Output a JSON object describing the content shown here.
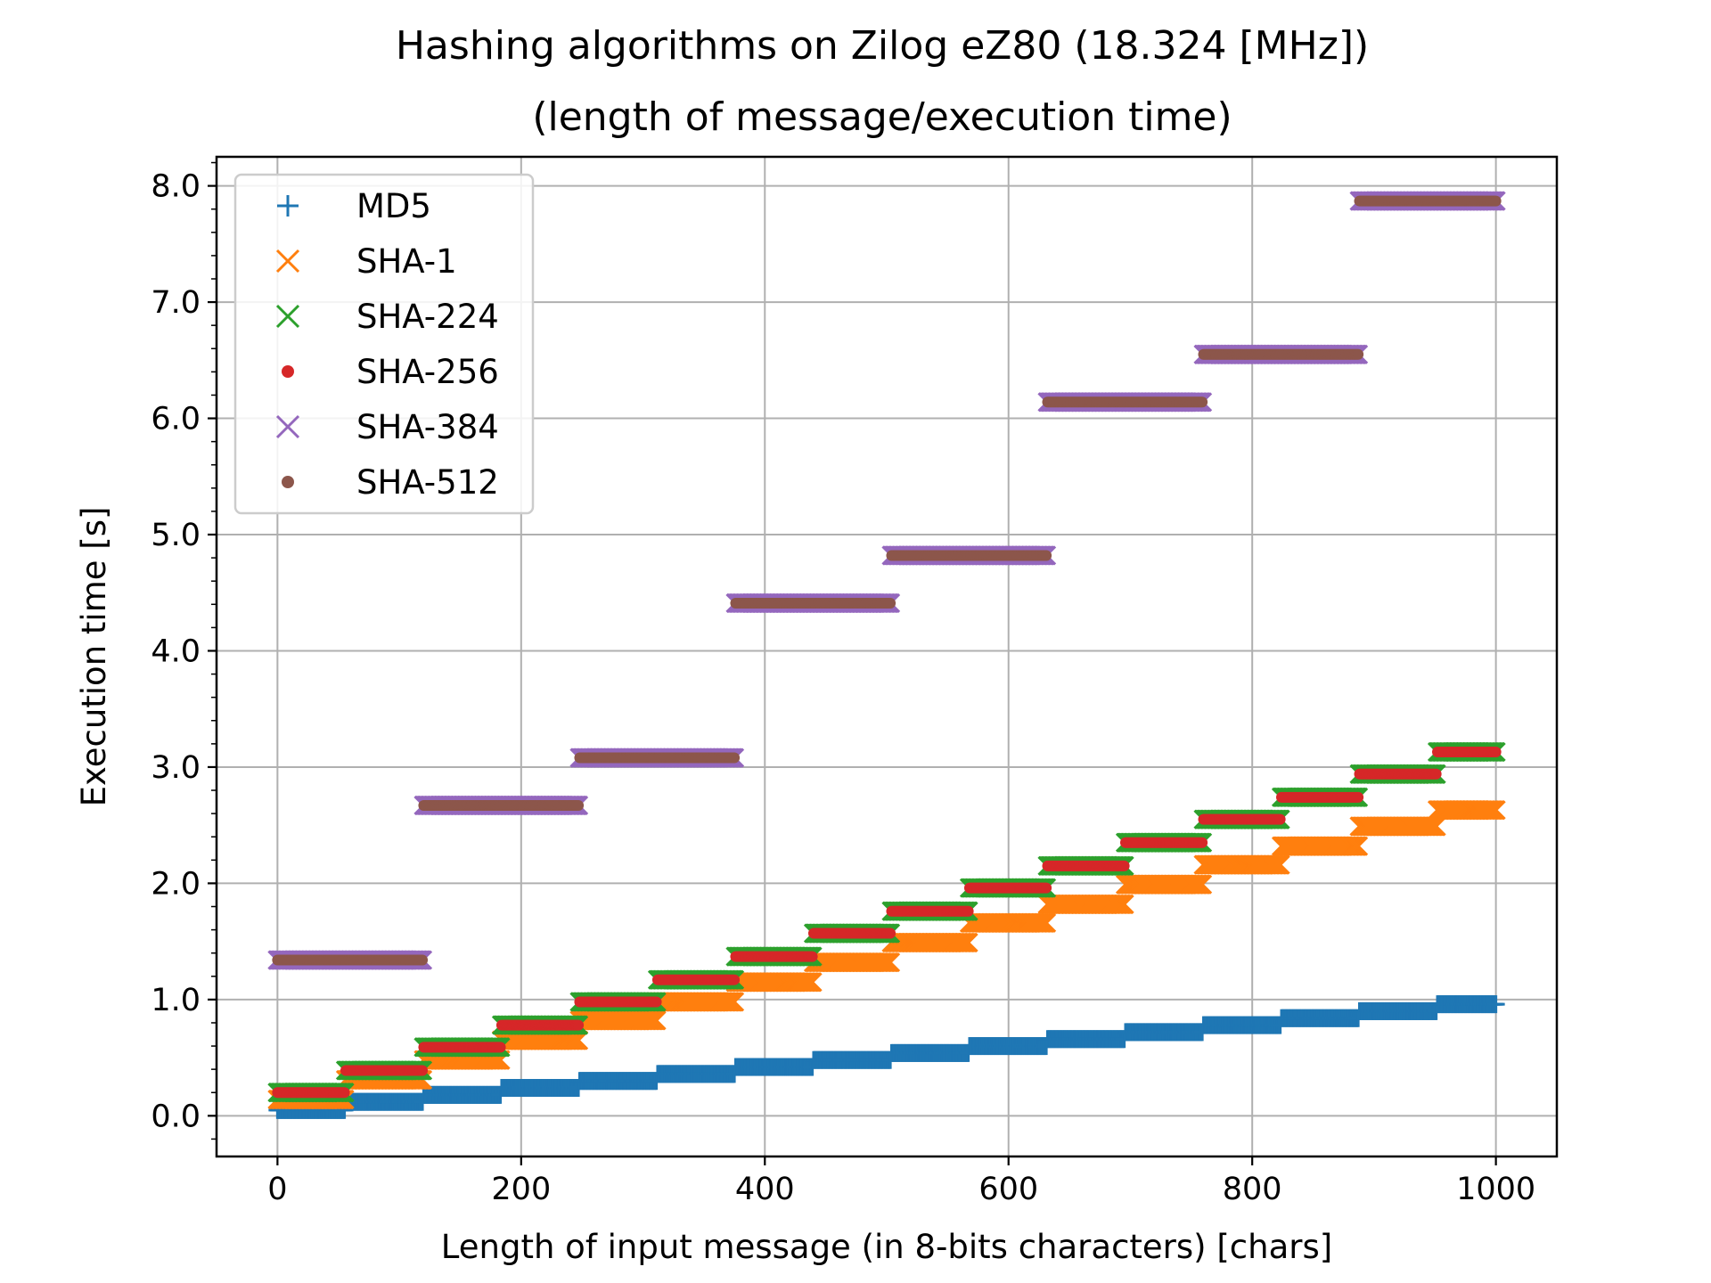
{
  "chart_data": {
    "type": "scatter",
    "title": "Hashing algorithms on Zilog eZ80 (18.324 [MHz])",
    "subtitle": "(length of message/execution time)",
    "xlabel": "Length of input message (in 8-bits characters) [chars]",
    "ylabel": "Execution time [s]",
    "xlim": [
      -50,
      1050
    ],
    "ylim": [
      -0.35,
      8.25
    ],
    "x_ticks": [
      0,
      200,
      400,
      600,
      800,
      1000
    ],
    "y_ticks": [
      0.0,
      1.0,
      2.0,
      3.0,
      4.0,
      5.0,
      6.0,
      7.0,
      8.0
    ],
    "x_tick_labels": [
      "0",
      "200",
      "400",
      "600",
      "800",
      "1000"
    ],
    "y_tick_labels": [
      "0.0",
      "1.0",
      "2.0",
      "3.0",
      "4.0",
      "5.0",
      "6.0",
      "7.0",
      "8.0"
    ],
    "grid": true,
    "legend_position": "upper-left",
    "x_range": [
      0,
      1000
    ],
    "series": [
      {
        "name": "MD5",
        "marker": "plus",
        "color": "#1f77b4",
        "block_chars": 64,
        "steps": [
          0.05,
          0.12,
          0.18,
          0.24,
          0.3,
          0.36,
          0.42,
          0.48,
          0.54,
          0.6,
          0.66,
          0.72,
          0.78,
          0.84,
          0.9,
          0.96
        ]
      },
      {
        "name": "SHA-1",
        "marker": "x",
        "color": "#ff7f0e",
        "block_chars": 64,
        "steps": [
          0.14,
          0.31,
          0.48,
          0.65,
          0.82,
          0.98,
          1.15,
          1.32,
          1.49,
          1.66,
          1.82,
          1.99,
          2.16,
          2.32,
          2.49,
          2.63
        ]
      },
      {
        "name": "SHA-224",
        "marker": "x",
        "color": "#2ca02c",
        "block_chars": 64,
        "steps": [
          0.2,
          0.39,
          0.59,
          0.78,
          0.98,
          1.17,
          1.37,
          1.57,
          1.76,
          1.96,
          2.15,
          2.35,
          2.55,
          2.74,
          2.94,
          3.13
        ]
      },
      {
        "name": "SHA-256",
        "marker": "dot",
        "color": "#d62728",
        "block_chars": 64,
        "steps": [
          0.2,
          0.39,
          0.59,
          0.78,
          0.98,
          1.17,
          1.37,
          1.57,
          1.76,
          1.96,
          2.15,
          2.35,
          2.55,
          2.74,
          2.94,
          3.13
        ]
      },
      {
        "name": "SHA-384",
        "marker": "x",
        "color": "#9467bd",
        "block_chars": 128,
        "steps": [
          1.34,
          2.67,
          3.08,
          4.41,
          4.82,
          6.14,
          6.55,
          7.87
        ]
      },
      {
        "name": "SHA-512",
        "marker": "dot",
        "color": "#8c564b",
        "block_chars": 128,
        "steps": [
          1.34,
          2.67,
          3.08,
          4.41,
          4.82,
          6.14,
          6.55,
          7.87
        ]
      }
    ]
  }
}
